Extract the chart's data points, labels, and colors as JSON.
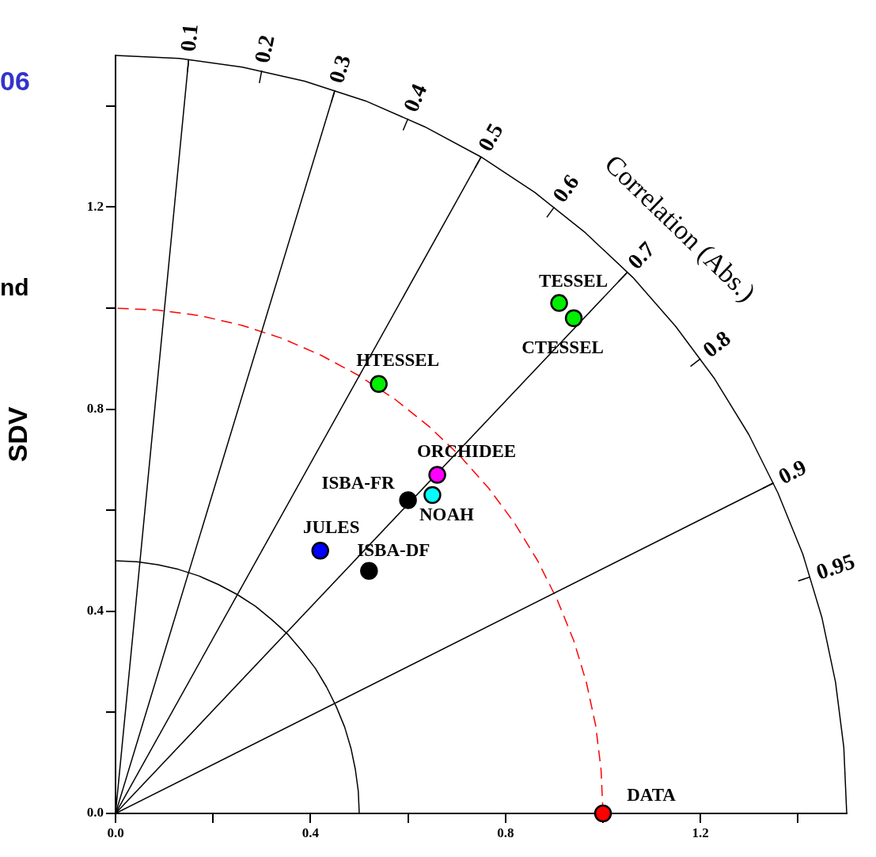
{
  "chart_data": {
    "type": "scatter",
    "ylabel": "SDV",
    "xlim": [
      0,
      1.5
    ],
    "ylim": [
      0,
      1.5
    ],
    "xticks": [
      {
        "value": 0,
        "label": "0.0"
      },
      {
        "value": 0.2,
        "label": null
      },
      {
        "value": 0.4,
        "label": "0.4"
      },
      {
        "value": 0.6,
        "label": null
      },
      {
        "value": 0.8,
        "label": "0.8"
      },
      {
        "value": 1.0,
        "label": null
      },
      {
        "value": 1.2,
        "label": "1.2"
      },
      {
        "value": 1.4,
        "label": null
      }
    ],
    "yticks": [
      {
        "value": 0,
        "label": "0.0"
      },
      {
        "value": 0.2,
        "label": null
      },
      {
        "value": 0.4,
        "label": "0.4"
      },
      {
        "value": 0.6,
        "label": null
      },
      {
        "value": 0.8,
        "label": "0.8"
      },
      {
        "value": 1.0,
        "label": null
      },
      {
        "value": 1.2,
        "label": "1.2"
      },
      {
        "value": 1.4,
        "label": null
      }
    ],
    "grid": false,
    "marker": "circle",
    "series": [
      {
        "type": "line",
        "color": "#000000",
        "marker": "none",
        "x": [
          0,
          0.15
        ],
        "values": [
          0,
          1.492
        ]
      },
      {
        "type": "line",
        "color": "#000000",
        "marker": "none",
        "x": [
          0,
          0.45
        ],
        "values": [
          0,
          1.431
        ]
      },
      {
        "type": "line",
        "color": "#000000",
        "marker": "none",
        "x": [
          0,
          0.75
        ],
        "values": [
          0,
          1.299
        ]
      },
      {
        "type": "line",
        "color": "#000000",
        "marker": "none",
        "x": [
          0,
          1.05
        ],
        "values": [
          0,
          1.071
        ]
      },
      {
        "type": "line",
        "color": "#000000",
        "marker": "none",
        "x": [
          0,
          1.35
        ],
        "values": [
          0,
          0.654
        ]
      },
      {
        "type": "line",
        "color": "#000000",
        "marker": "none",
        "x": [
          0.5,
          0.498,
          0.492,
          0.483,
          0.47,
          0.453,
          0.433,
          0.41,
          0.383,
          0.354,
          0.321,
          0.287,
          0.25,
          0.211,
          0.171,
          0.129,
          0.087,
          0.044,
          0
        ],
        "values": [
          0,
          0.044,
          0.087,
          0.129,
          0.171,
          0.211,
          0.25,
          0.287,
          0.321,
          0.354,
          0.383,
          0.41,
          0.433,
          0.453,
          0.47,
          0.483,
          0.492,
          0.498,
          0.5
        ]
      },
      {
        "type": "line",
        "color": "#000000",
        "marker": "none",
        "x": [
          1.5,
          1.494,
          1.477,
          1.449,
          1.41,
          1.359,
          1.299,
          1.229,
          1.149,
          1.061,
          0.964,
          0.86,
          0.75,
          0.634,
          0.513,
          0.388,
          0.26,
          0.131,
          0
        ],
        "values": [
          0,
          0.131,
          0.26,
          0.388,
          0.513,
          0.634,
          0.75,
          0.86,
          0.964,
          1.061,
          1.149,
          1.229,
          1.299,
          1.359,
          1.41,
          1.449,
          1.477,
          1.494,
          1.5
        ]
      },
      {
        "type": "line",
        "color": "#ff0000",
        "marker": "none",
        "line_style": "dashed",
        "x": [
          1,
          0.996,
          0.985,
          0.966,
          0.94,
          0.906,
          0.866,
          0.819,
          0.766,
          0.707,
          0.643,
          0.574,
          0.5,
          0.423,
          0.342,
          0.259,
          0.174,
          0.087,
          0
        ],
        "values": [
          0,
          0.087,
          0.174,
          0.259,
          0.342,
          0.423,
          0.5,
          0.574,
          0.643,
          0.707,
          0.766,
          0.819,
          0.866,
          0.906,
          0.94,
          0.966,
          0.985,
          0.996,
          1
        ]
      },
      {
        "name": "TESSEL",
        "color": "#00ee00",
        "x": [
          0.91
        ],
        "values": [
          1.01
        ]
      },
      {
        "name": "CTESSEL",
        "color": "#00ee00",
        "x": [
          0.94
        ],
        "values": [
          0.98
        ]
      },
      {
        "name": "HTESSEL",
        "color": "#00ee00",
        "x": [
          0.54
        ],
        "values": [
          0.85
        ]
      },
      {
        "name": "ORCHIDEE",
        "color": "#ff00ff",
        "x": [
          0.66
        ],
        "values": [
          0.67
        ]
      },
      {
        "name": "NOAH",
        "color": "#00ffff",
        "x": [
          0.65
        ],
        "values": [
          0.63
        ]
      },
      {
        "name": "ISBA-FR",
        "color": "#000000",
        "x": [
          0.6
        ],
        "values": [
          0.62
        ]
      },
      {
        "name": "JULES",
        "color": "#0000ff",
        "x": [
          0.42
        ],
        "values": [
          0.52
        ]
      },
      {
        "name": "ISBA-DF",
        "color": "#000000",
        "x": [
          0.52
        ],
        "values": [
          0.48
        ]
      },
      {
        "name": "DATA",
        "color": "#ff0000",
        "x": [
          1.0
        ],
        "values": [
          0
        ]
      }
    ],
    "annotations": [
      {
        "text": "Correlation (Abs.)",
        "x": 1.06,
        "y": 1.06
      },
      {
        "text": "0.1",
        "x": 0.15,
        "y": 1.492
      },
      {
        "text": "0.2",
        "x": 0.3,
        "y": 1.47
      },
      {
        "text": "0.3",
        "x": 0.45,
        "y": 1.431
      },
      {
        "text": "0.4",
        "x": 0.6,
        "y": 1.375
      },
      {
        "text": "0.5",
        "x": 0.75,
        "y": 1.299
      },
      {
        "text": "0.6",
        "x": 0.9,
        "y": 1.2
      },
      {
        "text": "0.7",
        "x": 1.05,
        "y": 1.071
      },
      {
        "text": "0.8",
        "x": 1.2,
        "y": 0.9
      },
      {
        "text": "0.9",
        "x": 1.35,
        "y": 0.654
      },
      {
        "text": "0.95",
        "x": 1.425,
        "y": 0.468
      },
      "06",
      "nd"
    ]
  }
}
